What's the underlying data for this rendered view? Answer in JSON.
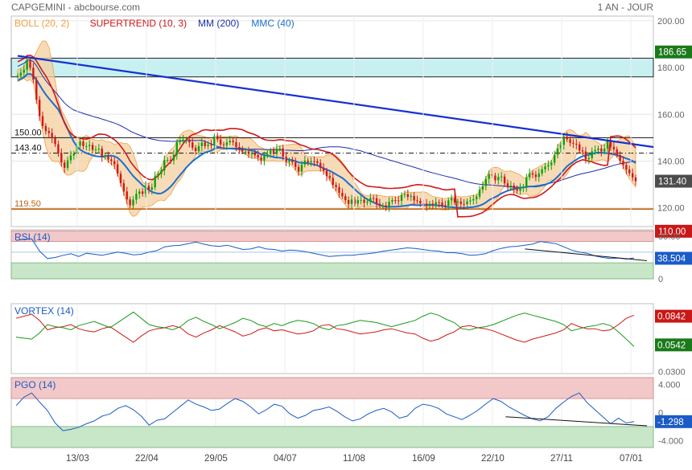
{
  "header": {
    "left": "CAPGEMINI - abcbourse.com",
    "right": "1 AN - JOUR"
  },
  "colors": {
    "up": "#0aa20a",
    "down": "#d01818",
    "boll_fill": "#f4cf9f",
    "boll_line": "#f0a040",
    "supertrend": "#d01818",
    "mm200": "#1c2fb0",
    "mmc40": "#1a6fd0",
    "trendline": "#1730d0",
    "support": "#c06010",
    "resistance_band": "#c8f0f0",
    "rsi": "#1a5bc8",
    "vortex_plus": "#d01818",
    "vortex_minus": "#1a9a1a",
    "pgo": "#1a5bc8",
    "zone_high": "#f2c8c8",
    "zone_low": "#c8e6c8",
    "price_tag": "#4c4c4c",
    "green_tag": "#1a7a1a",
    "red_tag": "#c81818",
    "blue_tag": "#1a5bc8"
  },
  "chart_data": [
    {
      "type": "candlestick",
      "panel": "price",
      "legend": [
        {
          "label": "BOLL (20, 2)",
          "color": "#f0a040"
        },
        {
          "label": "SUPERTREND (10, 3)",
          "color": "#d01818"
        },
        {
          "label": "MM (200)",
          "color": "#1c2fb0"
        },
        {
          "label": "MMC (40)",
          "color": "#1a6fd0"
        }
      ],
      "y_ticks": [
        120,
        140,
        160,
        180,
        200
      ],
      "ylim": [
        112,
        202
      ],
      "x_tick_labels": [
        "13/03",
        "22/04",
        "29/05",
        "04/07",
        "11/08",
        "16/09",
        "22/10",
        "27/11",
        "07/01"
      ],
      "horizontal_levels": [
        {
          "value": 150.0,
          "label": "150.00",
          "style": "solid"
        },
        {
          "value": 143.4,
          "label": "143.40",
          "style": "dashdot"
        },
        {
          "value": 119.5,
          "label": "119.50",
          "style": "support"
        }
      ],
      "resistance_band": [
        176,
        184
      ],
      "trendline": [
        [
          0,
          185
        ],
        [
          252,
          146
        ]
      ],
      "price_tags": [
        {
          "value": 186.65,
          "label": "186.65",
          "color": "#1a7a1a"
        },
        {
          "value": 131.4,
          "label": "131.40",
          "color": "#4c4c4c"
        },
        {
          "value": 110.0,
          "label": "110.00",
          "color": "#c81818"
        }
      ],
      "close": [
        176.5,
        177.8,
        179.1,
        183.0,
        179.9,
        174.8,
        166.2,
        159.2,
        155.0,
        152.8,
        152.0,
        149.8,
        147.2,
        143.4,
        139.4,
        137.1,
        140.3,
        142.4,
        143.2,
        146.6,
        148.4,
        146.4,
        146.4,
        146.9,
        144.8,
        145.0,
        145.3,
        141.8,
        142.1,
        140.7,
        140.0,
        138.6,
        134.6,
        130.5,
        127.0,
        123.6,
        121.1,
        123.5,
        126.0,
        127.0,
        126.0,
        129.4,
        127.8,
        128.8,
        133.5,
        134.5,
        136.0,
        140.4,
        140.5,
        140.3,
        142.7,
        148.1,
        148.9,
        149.2,
        149.2,
        148.0,
        145.7,
        144.3,
        146.4,
        147.9,
        146.4,
        147.0,
        146.9,
        150.6,
        149.3,
        147.1,
        146.8,
        148.0,
        148.7,
        148.1,
        146.0,
        145.2,
        144.1,
        144.1,
        143.1,
        143.2,
        142.5,
        141.5,
        140.3,
        142.4,
        143.0,
        144.5,
        143.7,
        145.3,
        145.4,
        141.9,
        139.6,
        140.3,
        139.5,
        137.5,
        135.5,
        138.5,
        140.2,
        139.5,
        140.0,
        139.9,
        139.2,
        137.1,
        135.9,
        133.6,
        132.8,
        129.8,
        128.9,
        126.4,
        125.0,
        123.3,
        121.7,
        123.6,
        121.8,
        123.3,
        123.4,
        122.2,
        122.6,
        124.2,
        124.1,
        121.8,
        121.0,
        121.0,
        120.4,
        122.6,
        123.3,
        123.2,
        123.0,
        125.5,
        125.8,
        124.7,
        125.1,
        123.2,
        123.0,
        121.9,
        121.8,
        120.8,
        121.8,
        121.1,
        122.4,
        122.3,
        121.1,
        120.9,
        123.2,
        124.1,
        122.3,
        122.7,
        121.7,
        121.6,
        122.8,
        123.2,
        123.7,
        124.8,
        127.8,
        129.3,
        132.4,
        134.4,
        133.8,
        131.8,
        133.2,
        133.4,
        130.5,
        129.0,
        129.5,
        128.0,
        127.3,
        128.5,
        129.0,
        133.0,
        134.8,
        134.2,
        133.2,
        134.7,
        136.5,
        137.7,
        138.3,
        139.3,
        142.7,
        145.4,
        147.0,
        150.4,
        149.3,
        147.8,
        147.4,
        147.1,
        144.5,
        144.1,
        140.8,
        141.3,
        144.2,
        144.7,
        145.4,
        144.1,
        145.3,
        148.8,
        146.1,
        145.0,
        142.6,
        140.1,
        138.4,
        136.4,
        134.8,
        133.0,
        131.4
      ],
      "note": "close values listed on a compressed index; the full series spans 252 trading days"
    },
    {
      "type": "line",
      "panel": "rsi",
      "title": "RSI (14)",
      "y_ticks": [
        0,
        80
      ],
      "y_tick_labels": [
        "0",
        "80.00"
      ],
      "zone_high": [
        70,
        90
      ],
      "zone_low": [
        0,
        30
      ],
      "mid": 50,
      "last_value": "38.504",
      "values": [
        72,
        74,
        75,
        52,
        38,
        40,
        44,
        47,
        42,
        48,
        46,
        44,
        47,
        50,
        48,
        45,
        46,
        50,
        53,
        60,
        62,
        63,
        66,
        69,
        65,
        62,
        61,
        63,
        59,
        55,
        56,
        60,
        56,
        55,
        52,
        54,
        53,
        51,
        48,
        45,
        42,
        43,
        44,
        44,
        46,
        47,
        49,
        52,
        54,
        56,
        58,
        57,
        55,
        53,
        52,
        49,
        49,
        47,
        44,
        45,
        47,
        53,
        57,
        60,
        61,
        63,
        65,
        70,
        68,
        66,
        60,
        54,
        50,
        48,
        43,
        40,
        38,
        39,
        37,
        39
      ],
      "trendline": [
        [
          0.8,
          56
        ],
        [
          0.99,
          34
        ]
      ]
    },
    {
      "type": "line",
      "panel": "vortex",
      "title": "VORTEX (14)",
      "y_ticks": [
        0.03,
        0.0842
      ],
      "y_tick_labels": [
        "0.0300"
      ],
      "series": [
        {
          "values": [
            0.081,
            0.083,
            0.085,
            0.079,
            0.07,
            0.072,
            0.073,
            0.075,
            0.071,
            0.069,
            0.068,
            0.071,
            0.073,
            0.068,
            0.063,
            0.058,
            0.064,
            0.069,
            0.071,
            0.072,
            0.074,
            0.072,
            0.066,
            0.063,
            0.067,
            0.07,
            0.074,
            0.071,
            0.068,
            0.064,
            0.066,
            0.07,
            0.072,
            0.069,
            0.07,
            0.068,
            0.066,
            0.067,
            0.069,
            0.074,
            0.075,
            0.071,
            0.07,
            0.068,
            0.066,
            0.067,
            0.068,
            0.07,
            0.071,
            0.069,
            0.067,
            0.066,
            0.062,
            0.059,
            0.061,
            0.065,
            0.068,
            0.073,
            0.074,
            0.072,
            0.071,
            0.069,
            0.066,
            0.063,
            0.06,
            0.058,
            0.061,
            0.063,
            0.065,
            0.067,
            0.07,
            0.076,
            0.073,
            0.071,
            0.071,
            0.069,
            0.07,
            0.075,
            0.081,
            0.084
          ]
        },
        {
          "values": [
            0.063,
            0.062,
            0.061,
            0.067,
            0.075,
            0.073,
            0.072,
            0.07,
            0.074,
            0.076,
            0.078,
            0.075,
            0.072,
            0.077,
            0.082,
            0.087,
            0.081,
            0.075,
            0.073,
            0.072,
            0.07,
            0.073,
            0.079,
            0.082,
            0.078,
            0.075,
            0.071,
            0.074,
            0.077,
            0.081,
            0.079,
            0.075,
            0.073,
            0.076,
            0.074,
            0.077,
            0.079,
            0.078,
            0.076,
            0.072,
            0.07,
            0.074,
            0.075,
            0.077,
            0.079,
            0.078,
            0.077,
            0.075,
            0.073,
            0.075,
            0.077,
            0.079,
            0.083,
            0.086,
            0.084,
            0.08,
            0.077,
            0.071,
            0.07,
            0.072,
            0.073,
            0.075,
            0.078,
            0.081,
            0.084,
            0.086,
            0.084,
            0.082,
            0.08,
            0.078,
            0.075,
            0.069,
            0.071,
            0.073,
            0.074,
            0.076,
            0.074,
            0.068,
            0.061,
            0.054
          ]
        }
      ],
      "last_values": [
        "0.0842",
        "0.0542"
      ]
    },
    {
      "type": "line",
      "panel": "pgo",
      "title": "PGO (14)",
      "y_ticks": [
        4,
        0,
        -4
      ],
      "y_tick_labels": [
        "4.000",
        "0",
        "-4.000"
      ],
      "zone_high": [
        2,
        5
      ],
      "zone_low": [
        -5,
        -2
      ],
      "last_value": "-1.298",
      "values": [
        1.0,
        2.2,
        2.8,
        1.5,
        0.3,
        -1.5,
        -2.6,
        -2.4,
        -2.1,
        -1.6,
        -1.2,
        -0.5,
        -0.2,
        0.6,
        1.0,
        0.4,
        -0.5,
        -1.8,
        -1.1,
        -0.9,
        0.0,
        0.9,
        1.8,
        1.2,
        0.8,
        0.3,
        0.5,
        1.3,
        2.0,
        1.6,
        0.8,
        -0.2,
        0.4,
        1.2,
        0.9,
        -0.2,
        -0.8,
        -0.4,
        0.3,
        0.5,
        0.8,
        0.2,
        -0.6,
        -1.2,
        -0.9,
        -0.2,
        0.3,
        0.6,
        0.1,
        -0.8,
        -0.5,
        0.6,
        1.2,
        1.0,
        0.6,
        -0.2,
        -0.6,
        -1.0,
        -0.4,
        0.3,
        1.2,
        2.0,
        1.6,
        0.8,
        0.2,
        -0.4,
        -0.9,
        -1.2,
        -0.6,
        0.6,
        1.5,
        2.3,
        2.8,
        1.4,
        0.4,
        -0.6,
        -1.6,
        -0.8,
        -1.5,
        -1.3
      ],
      "trendline": [
        [
          0.77,
          -0.6
        ],
        [
          0.99,
          -1.9
        ]
      ]
    }
  ]
}
